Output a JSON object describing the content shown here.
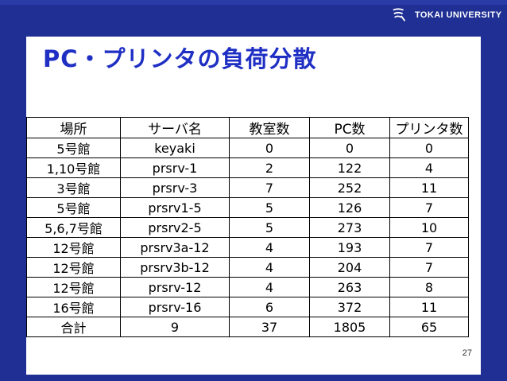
{
  "logo": {
    "text": "TOKAI UNIVERSITY",
    "mark_icon": "tokai-university-logo-icon"
  },
  "title": "PC・プリンタの負荷分散",
  "table": {
    "headers": [
      "場所",
      "サーバ名",
      "教室数",
      "PC数",
      "プリンタ数"
    ],
    "rows": [
      [
        "5号館",
        "keyaki",
        "0",
        "0",
        "0"
      ],
      [
        "1,10号館",
        "prsrv-1",
        "2",
        "122",
        "4"
      ],
      [
        "3号館",
        "prsrv-3",
        "7",
        "252",
        "11"
      ],
      [
        "5号館",
        "prsrv1-5",
        "5",
        "126",
        "7"
      ],
      [
        "5,6,7号館",
        "prsrv2-5",
        "5",
        "273",
        "10"
      ],
      [
        "12号館",
        "prsrv3a-12",
        "4",
        "193",
        "7"
      ],
      [
        "12号館",
        "prsrv3b-12",
        "4",
        "204",
        "7"
      ],
      [
        "12号館",
        "prsrv-12",
        "4",
        "263",
        "8"
      ],
      [
        "16号館",
        "prsrv-16",
        "6",
        "372",
        "11"
      ],
      [
        "合計",
        "9",
        "37",
        "1805",
        "65"
      ]
    ]
  },
  "page_number": "27",
  "colors": {
    "background": "#1f2f93",
    "title": "#1f2fc4",
    "panel": "#ffffff",
    "text": "#000000"
  }
}
